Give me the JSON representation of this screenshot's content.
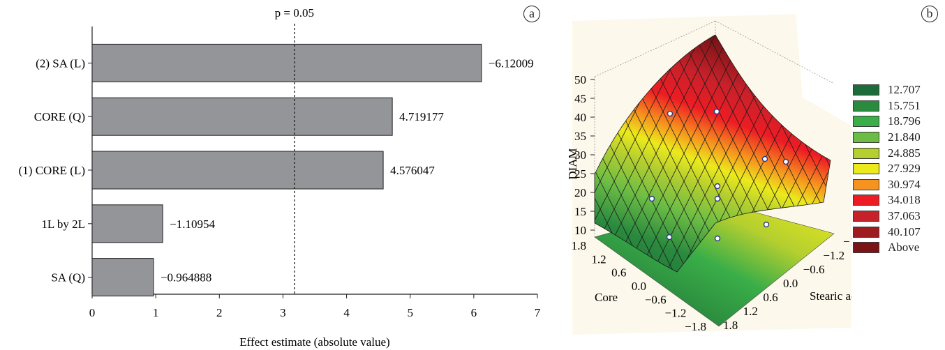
{
  "chart_data": [
    {
      "panel": "a",
      "type": "bar",
      "orientation": "horizontal",
      "categories": [
        "(2) SA (L)",
        "CORE (Q)",
        "(1) CORE (L)",
        "1L by 2L",
        "SA (Q)"
      ],
      "values": [
        6.12009,
        4.719177,
        4.576047,
        1.10954,
        0.964888
      ],
      "value_labels": [
        "−6.12009",
        "4.719177",
        "4.576047",
        "−1.10954",
        "−0.964888"
      ],
      "xlabel": "Effect estimate (absolute value)",
      "xlim": [
        0,
        7
      ],
      "xticks": [
        0,
        1,
        2,
        3,
        4,
        5,
        6,
        7
      ],
      "reference_line": {
        "label": "p = 0.05",
        "value": 3.18
      },
      "bar_color": "#939598"
    },
    {
      "panel": "b",
      "type": "surface",
      "zlabel": "DIAM",
      "xlabel": "Core",
      "ylabel": "Stearic acid",
      "zticks": [
        "10",
        "15",
        "20",
        "25",
        "30",
        "35",
        "40",
        "45",
        "50"
      ],
      "core_ticks": [
        "1.8",
        "1.2",
        "0.6",
        "0.0",
        "−0.6",
        "−1.2",
        "−1.8"
      ],
      "sa_ticks": [
        "−1.8",
        "−1.2",
        "−0.6",
        "0.0",
        "0.6",
        "1.2",
        "1.8"
      ],
      "legend": [
        {
          "label": "12.707",
          "color": "#1e6b3a"
        },
        {
          "label": "15.751",
          "color": "#2a8a3e"
        },
        {
          "label": "18.796",
          "color": "#3aae48"
        },
        {
          "label": "21.840",
          "color": "#6cbd45"
        },
        {
          "label": "24.885",
          "color": "#b5cf2f"
        },
        {
          "label": "27.929",
          "color": "#ecea1c"
        },
        {
          "label": "30.974",
          "color": "#f6921e"
        },
        {
          "label": "34.018",
          "color": "#ed1c24"
        },
        {
          "label": "37.063",
          "color": "#c7212a"
        },
        {
          "label": "40.107",
          "color": "#9e1b20"
        },
        {
          "label": "Above",
          "color": "#7a1416"
        }
      ]
    }
  ],
  "panel_labels": {
    "a": "a",
    "b": "b"
  }
}
